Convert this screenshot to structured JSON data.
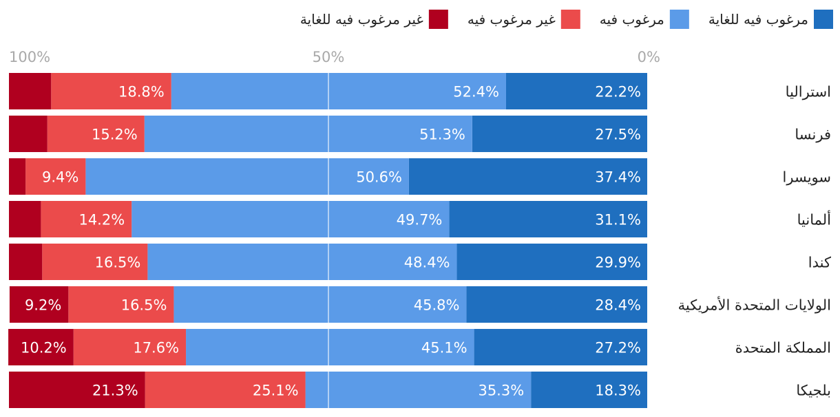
{
  "chart_data": {
    "type": "bar",
    "orientation": "horizontal",
    "stacked": true,
    "percent_stacked": true,
    "direction": "rtl",
    "categories": [
      "استراليا",
      "فرنسا",
      "سويسرا",
      "ألمانيا",
      "كندا",
      "الولايات المتحدة الأمريكية",
      "المملكة المتحدة",
      "بلجيكا"
    ],
    "series": [
      {
        "name": "مرغوب فيه للغاية",
        "color": "#1f6fbf",
        "values": [
          22.2,
          27.5,
          37.4,
          31.1,
          29.9,
          28.4,
          27.2,
          18.3
        ]
      },
      {
        "name": "مرغوب فيه",
        "color": "#5b9be8",
        "values": [
          52.4,
          51.3,
          50.6,
          49.7,
          48.4,
          45.8,
          45.1,
          35.3
        ]
      },
      {
        "name": "غير مرغوب فيه",
        "color": "#eb4b4b",
        "values": [
          18.8,
          15.2,
          9.4,
          14.2,
          16.5,
          16.5,
          17.6,
          25.1
        ]
      },
      {
        "name": "غير مرغوب فيه للغاية",
        "color": "#b0001f",
        "values": [
          6.6,
          6.0,
          2.6,
          5.0,
          5.2,
          9.2,
          10.2,
          21.3
        ]
      }
    ],
    "data_labels": [
      [
        "22.2%",
        "52.4%",
        "18.8%",
        null
      ],
      [
        "27.5%",
        "51.3%",
        "15.2%",
        null
      ],
      [
        "37.4%",
        "50.6%",
        "9.4%",
        null
      ],
      [
        "31.1%",
        "49.7%",
        "14.2%",
        null
      ],
      [
        "29.9%",
        "48.4%",
        "16.5%",
        null
      ],
      [
        "28.4%",
        "45.8%",
        "16.5%",
        "9.2%"
      ],
      [
        "27.2%",
        "45.1%",
        "17.6%",
        "10.2%"
      ],
      [
        "18.3%",
        "35.3%",
        "25.1%",
        "21.3%"
      ]
    ],
    "x_ticks": [
      {
        "value": 0,
        "label": "0%"
      },
      {
        "value": 50,
        "label": "50%"
      },
      {
        "value": 100,
        "label": "100%"
      }
    ],
    "xlim": [
      0,
      100
    ],
    "gridline_at": 50,
    "legend_position": "top",
    "title": "",
    "xlabel": "",
    "ylabel": ""
  }
}
